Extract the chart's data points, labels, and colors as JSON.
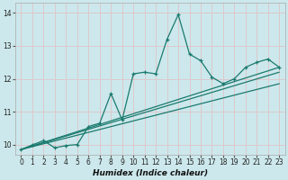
{
  "xlabel": "Humidex (Indice chaleur)",
  "ylabel": "",
  "bg_color": "#cce8ec",
  "grid_color": "#b8d8dc",
  "line_color": "#1a7a6e",
  "xlim": [
    -0.5,
    23.5
  ],
  "ylim": [
    9.7,
    14.3
  ],
  "xticks": [
    0,
    1,
    2,
    3,
    4,
    5,
    6,
    7,
    8,
    9,
    10,
    11,
    12,
    13,
    14,
    15,
    16,
    17,
    18,
    19,
    20,
    21,
    22,
    23
  ],
  "yticks": [
    10,
    11,
    12,
    13,
    14
  ],
  "main_series": {
    "x": [
      0,
      1,
      2,
      3,
      4,
      5,
      6,
      7,
      8,
      9,
      10,
      11,
      12,
      13,
      14,
      15,
      16,
      17,
      18,
      19,
      20,
      21,
      22,
      23
    ],
    "y": [
      9.85,
      9.99,
      10.12,
      9.9,
      9.97,
      10.0,
      10.55,
      10.65,
      11.55,
      10.75,
      12.15,
      12.2,
      12.15,
      13.2,
      13.95,
      12.75,
      12.55,
      12.05,
      11.85,
      12.0,
      12.35,
      12.5,
      12.6,
      12.35
    ]
  },
  "trend_lines": [
    {
      "x": [
        0,
        23
      ],
      "y": [
        9.85,
        12.35
      ]
    },
    {
      "x": [
        0,
        23
      ],
      "y": [
        9.85,
        12.2
      ]
    },
    {
      "x": [
        0,
        23
      ],
      "y": [
        9.85,
        11.85
      ]
    }
  ]
}
